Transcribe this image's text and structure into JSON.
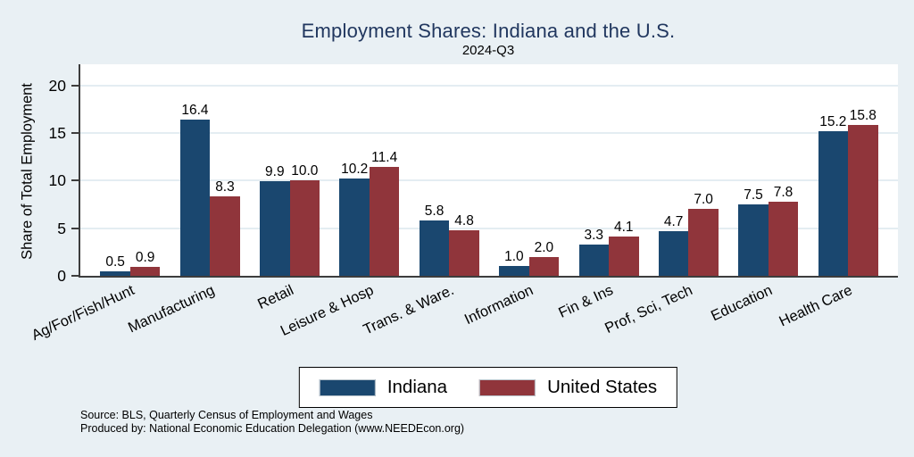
{
  "chart_data": {
    "type": "bar",
    "title": "Employment Shares: Indiana and the U.S.",
    "subtitle": "2024-Q3",
    "xlabel": "",
    "ylabel": "Share of Total Employment",
    "categories": [
      "Ag/For/Fish/Hunt",
      "Manufacturing",
      "Retail",
      "Leisure & Hosp",
      "Trans. & Ware.",
      "Information",
      "Fin & Ins",
      "Prof, Sci, Tech",
      "Education",
      "Health Care"
    ],
    "series": [
      {
        "name": "Indiana",
        "color": "#1a476f",
        "values": [
          0.5,
          16.4,
          9.9,
          10.2,
          5.8,
          1.0,
          3.3,
          4.7,
          7.5,
          15.2
        ]
      },
      {
        "name": "United States",
        "color": "#90353b",
        "values": [
          0.9,
          8.3,
          10.0,
          11.4,
          4.8,
          2.0,
          4.1,
          7.0,
          7.8,
          15.8
        ]
      }
    ],
    "yticks": [
      0,
      5,
      10,
      15,
      20
    ],
    "ylim": [
      0,
      22.2
    ],
    "grid": true,
    "value_labels": true,
    "legend_position": "bottom-center",
    "colors": {
      "background": "#e9f0f4",
      "plot_background": "#ffffff",
      "grid_line": "#e4edf2",
      "axis_line": "#3d3d3d",
      "title_text": "#21375f"
    }
  },
  "footer": {
    "source": "Source: BLS, Quarterly Census of Employment and Wages",
    "produced_by": "Produced by: National Economic Education Delegation (www.NEEDEcon.org)"
  }
}
